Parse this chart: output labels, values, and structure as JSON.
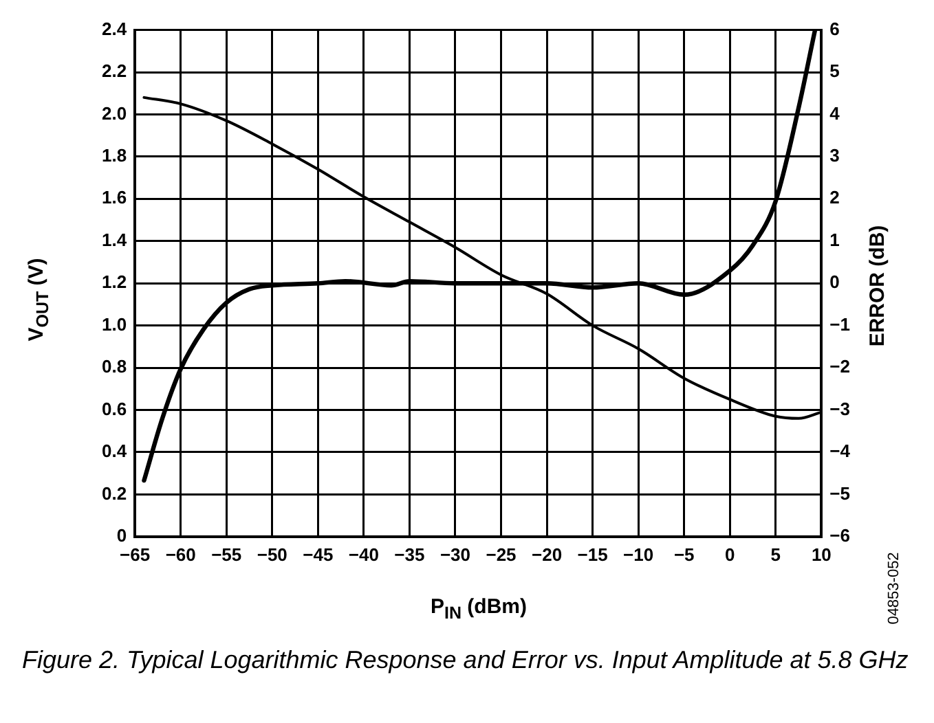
{
  "chart_data": {
    "type": "line",
    "xlabel": "P$_{IN}$ (dBm)",
    "ylabel": "V$_{OUT}$ (V)",
    "y2label": "ERROR (dB)",
    "annotations": [
      "04853-052",
      "Figure 2. Typical Logarithmic Response and Error vs. Input Amplitude at 5.8 GHz"
    ],
    "series": [
      {
        "color": "#000000",
        "x": [
          -64,
          -60,
          -55,
          -50,
          -45,
          -40,
          -35,
          -30,
          -25,
          -20,
          -15,
          -10,
          -5,
          0,
          5,
          7.5,
          10
        ],
        "values": [
          2.08,
          2.05,
          1.97,
          1.86,
          1.74,
          1.61,
          1.49,
          1.37,
          1.24,
          1.15,
          1.0,
          0.89,
          0.75,
          0.65,
          0.57,
          0.56,
          0.59
        ]
      },
      {
        "color": "#000000",
        "axis": "y2",
        "x": [
          -64,
          -62,
          -60,
          -57.5,
          -55,
          -52.5,
          -50,
          -45,
          -42,
          -37,
          -35,
          -30,
          -25,
          -20,
          -15,
          -10,
          -5,
          0,
          2.5,
          5,
          7.5,
          9.3
        ],
        "values": [
          -4.67,
          -3.2,
          -2.03,
          -1.09,
          -0.46,
          -0.14,
          -0.05,
          0,
          0.05,
          -0.05,
          0.05,
          0,
          0,
          0,
          -0.1,
          0,
          -0.27,
          0.3,
          0.9,
          1.95,
          4.15,
          6.0
        ]
      }
    ],
    "xlim": [
      -65,
      10
    ],
    "xticks": [
      {
        "value": -65,
        "label": "−65"
      },
      {
        "value": -60,
        "label": "−60"
      },
      {
        "value": -55,
        "label": "−55"
      },
      {
        "value": -50,
        "label": "−50"
      },
      {
        "value": -45,
        "label": "−45"
      },
      {
        "value": -40,
        "label": "−40"
      },
      {
        "value": -35,
        "label": "−35"
      },
      {
        "value": -30,
        "label": "−30"
      },
      {
        "value": -25,
        "label": "−25"
      },
      {
        "value": -20,
        "label": "−20"
      },
      {
        "value": -15,
        "label": "−15"
      },
      {
        "value": -10,
        "label": "−10"
      },
      {
        "value": -5,
        "label": "−5"
      },
      0,
      5,
      10
    ],
    "ylim": [
      0,
      2.4
    ],
    "yticks": [
      0,
      0.2,
      0.4,
      0.6,
      0.8,
      {
        "value": 1,
        "label": "1.0"
      },
      1.2,
      1.4,
      1.6,
      1.8,
      {
        "value": 2,
        "label": "2.0"
      },
      2.2,
      2.4
    ],
    "y2lim": [
      -6,
      6
    ],
    "y2ticks": [
      {
        "value": -6,
        "label": "−6"
      },
      {
        "value": -5,
        "label": "−5"
      },
      {
        "value": -4,
        "label": "−4"
      },
      {
        "value": -3,
        "label": "−3"
      },
      {
        "value": -2,
        "label": "−2"
      },
      {
        "value": -1,
        "label": "−1"
      },
      0,
      1,
      2,
      3,
      4,
      5,
      6
    ],
    "grid": true,
    "legend": false,
    "marker": "none",
    "line_style": "solid"
  }
}
